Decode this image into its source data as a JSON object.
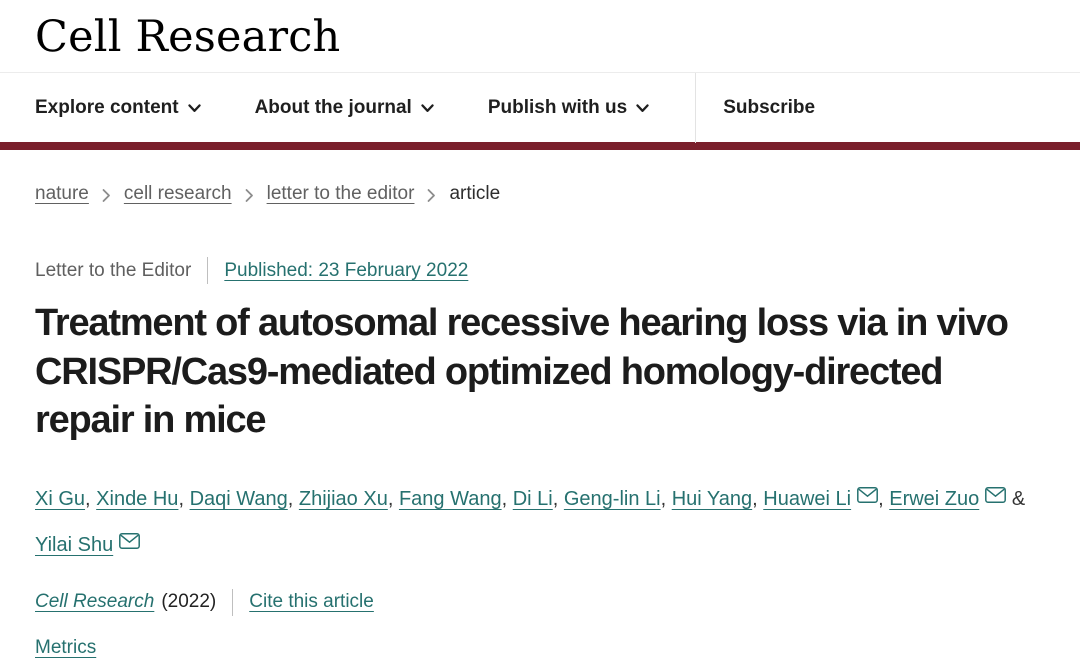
{
  "header": {
    "logo": "Cell Research",
    "nav_items": [
      {
        "label": "Explore content"
      },
      {
        "label": "About the journal"
      },
      {
        "label": "Publish with us"
      }
    ],
    "subscribe_label": "Subscribe"
  },
  "breadcrumb": {
    "items": [
      {
        "label": "nature",
        "link": true
      },
      {
        "label": "cell research",
        "link": true
      },
      {
        "label": "letter to the editor",
        "link": true
      },
      {
        "label": "article",
        "link": false
      }
    ]
  },
  "article": {
    "type_label": "Letter to the Editor",
    "published_label": "Published: 23 February 2022",
    "title": "Treatment of autosomal recessive hearing loss via in vivo CRISPR/Cas9-mediated optimized homology-directed repair in mice",
    "authors": [
      {
        "name": "Xi Gu",
        "email": false
      },
      {
        "name": "Xinde Hu",
        "email": false
      },
      {
        "name": "Daqi Wang",
        "email": false
      },
      {
        "name": "Zhijiao Xu",
        "email": false
      },
      {
        "name": "Fang Wang",
        "email": false
      },
      {
        "name": "Di Li",
        "email": false
      },
      {
        "name": "Geng-lin Li",
        "email": false
      },
      {
        "name": "Hui Yang",
        "email": false
      },
      {
        "name": "Huawei Li",
        "email": true
      },
      {
        "name": "Erwei Zuo",
        "email": true
      },
      {
        "name": "Yilai Shu",
        "email": true
      }
    ],
    "author_separator": ", ",
    "author_last_separator": " & ",
    "journal_name": "Cell Research",
    "journal_year": "(2022)",
    "cite_label": "Cite this article",
    "metrics_label": "Metrics"
  },
  "colors": {
    "link_teal": "#26716f",
    "brand_maroon": "#7a1f2b",
    "text_dark": "#1c1c1c",
    "text_gray": "#616161"
  }
}
